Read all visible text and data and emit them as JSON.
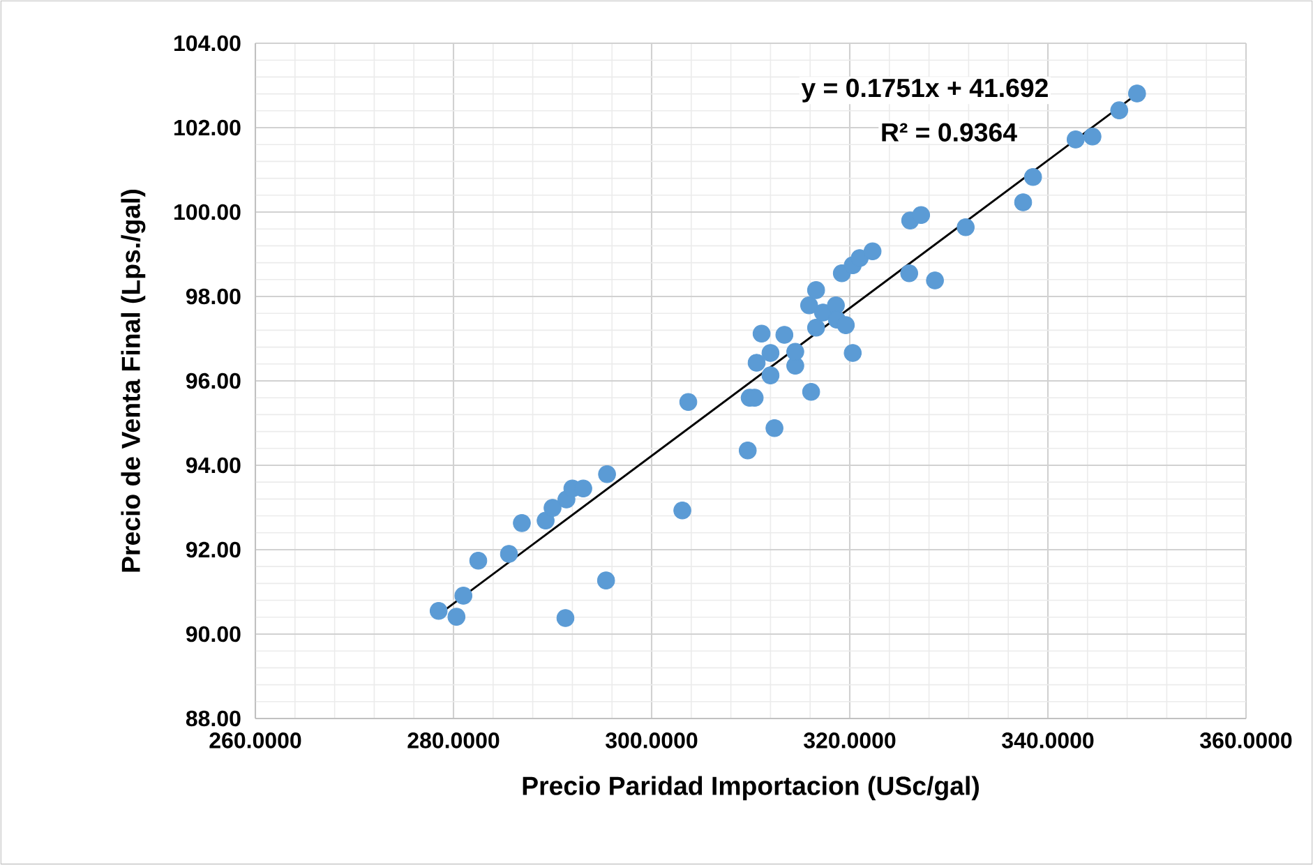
{
  "chart_data": {
    "type": "scatter",
    "xlabel": "Precio Paridad Importacion (USc/gal)",
    "ylabel": "Precio de Venta Final (Lps./gal)",
    "xlim": [
      260,
      360
    ],
    "ylim": [
      88,
      104
    ],
    "xticks": [
      {
        "value": 260,
        "label": "260.0000"
      },
      {
        "value": 280,
        "label": "280.0000"
      },
      {
        "value": 300,
        "label": "300.0000"
      },
      {
        "value": 320,
        "label": "320.0000"
      },
      {
        "value": 340,
        "label": "340.0000"
      },
      {
        "value": 360,
        "label": "360.0000"
      }
    ],
    "yticks": [
      {
        "value": 88,
        "label": "88.00"
      },
      {
        "value": 90,
        "label": "90.00"
      },
      {
        "value": 92,
        "label": "92.00"
      },
      {
        "value": 94,
        "label": "94.00"
      },
      {
        "value": 96,
        "label": "96.00"
      },
      {
        "value": 98,
        "label": "98.00"
      },
      {
        "value": 100,
        "label": "100.00"
      },
      {
        "value": 102,
        "label": "102.00"
      },
      {
        "value": 104,
        "label": "104.00"
      }
    ],
    "grid": true,
    "marker": "circle",
    "annotations": [
      "y = 0.1751x + 41.692",
      "R² = 0.9364"
    ],
    "series": [
      {
        "color": "#5b9bd5",
        "x": [
          278.5,
          280.3,
          281.0,
          282.5,
          285.6,
          286.9,
          289.3,
          290.0,
          291.4,
          292.0,
          293.1,
          295.5,
          291.3,
          295.4,
          303.1,
          303.7,
          309.7,
          309.9,
          310.4,
          310.6,
          311.1,
          312.0,
          312.0,
          312.4,
          313.4,
          314.5,
          314.5,
          316.1,
          315.9,
          316.6,
          316.6,
          317.3,
          318.6,
          318.7,
          319.2,
          319.6,
          320.3,
          320.3,
          321.0,
          322.3,
          326.0,
          326.1,
          327.2,
          328.6,
          331.7,
          337.5,
          338.5,
          342.8,
          344.5,
          347.2,
          349.0
        ],
        "values": [
          90.55,
          90.41,
          90.91,
          91.74,
          91.9,
          92.63,
          92.69,
          92.99,
          93.19,
          93.45,
          93.45,
          93.79,
          90.38,
          91.27,
          92.93,
          95.5,
          94.35,
          95.6,
          95.6,
          96.43,
          97.12,
          96.66,
          96.13,
          94.88,
          97.09,
          96.36,
          96.69,
          95.74,
          97.79,
          98.15,
          97.26,
          97.62,
          97.79,
          97.45,
          98.55,
          97.32,
          96.66,
          98.74,
          98.91,
          99.07,
          98.55,
          99.8,
          99.93,
          98.38,
          99.64,
          100.23,
          100.83,
          101.72,
          101.79,
          102.41,
          102.81
        ]
      },
      {
        "type": "line",
        "color": "#000000",
        "marker": "none",
        "line_style": "solid",
        "x": [
          278.5,
          349.0
        ],
        "values": [
          90.46,
          102.8
        ]
      }
    ]
  }
}
